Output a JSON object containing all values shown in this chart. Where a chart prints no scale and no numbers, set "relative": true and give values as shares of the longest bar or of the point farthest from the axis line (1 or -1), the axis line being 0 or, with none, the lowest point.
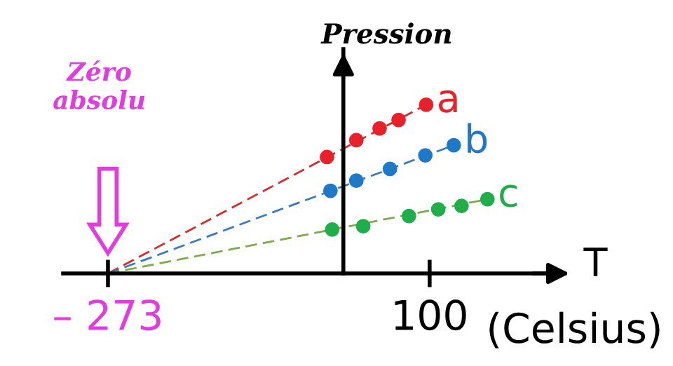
{
  "chart_data": {
    "type": "scatter",
    "relative": true,
    "ylabel": "Pression",
    "xlabel": "T",
    "xlim": [
      -325,
      244
    ],
    "xticks": [
      {
        "value": -273,
        "label": "– 273"
      },
      100
    ],
    "annotations": [
      "Zéro\nabsolu",
      "(Celsius)"
    ],
    "marker": "circle",
    "grid": false,
    "series": [
      {
        "name": "a",
        "color": "#e8202a",
        "x": [
          -19,
          15,
          42,
          64,
          96
        ],
        "values": [
          0.69,
          0.79,
          0.86,
          0.91,
          1.0
        ]
      },
      {
        "name": "b",
        "color": "#1f78c8",
        "x": [
          -15,
          15,
          54,
          95,
          128
        ],
        "values": [
          0.49,
          0.55,
          0.62,
          0.7,
          0.76
        ]
      },
      {
        "name": "c",
        "color": "#1fae4a",
        "x": [
          -13,
          23,
          76,
          110,
          137,
          167
        ],
        "values": [
          0.26,
          0.28,
          0.34,
          0.38,
          0.4,
          0.44
        ]
      },
      {
        "type": "line",
        "line_style": "dashed",
        "marker": "none",
        "color": "#d62c2c",
        "x": [
          -273,
          96
        ],
        "values": [
          0,
          1.0
        ]
      },
      {
        "type": "line",
        "line_style": "dashed",
        "marker": "none",
        "color": "#3a7bc0",
        "x": [
          -273,
          128
        ],
        "values": [
          0,
          0.76
        ]
      },
      {
        "type": "line",
        "line_style": "dashed",
        "marker": "none",
        "color": "#7aac4a",
        "x": [
          -273,
          167
        ],
        "values": [
          0,
          0.44
        ]
      }
    ]
  }
}
